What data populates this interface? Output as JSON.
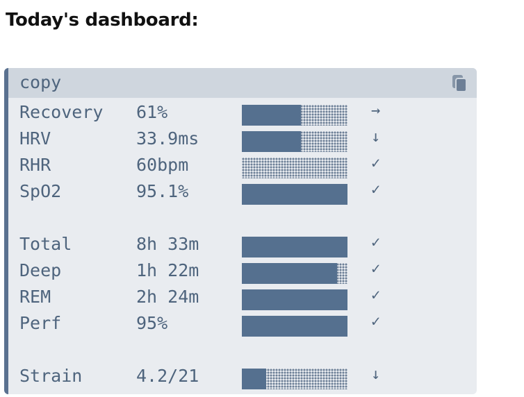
{
  "heading": "Today's dashboard:",
  "code_block": {
    "language": "copy",
    "copy_icon": "copy-icon",
    "rows": [
      {
        "label": "Recovery",
        "value": "61%",
        "fill": 0.56,
        "trend": "→"
      },
      {
        "label": "HRV",
        "value": "33.9ms",
        "fill": 0.56,
        "trend": "↓"
      },
      {
        "label": "RHR",
        "value": "60bpm",
        "fill": 0.0,
        "trend": "✓"
      },
      {
        "label": "SpO2",
        "value": "95.1%",
        "fill": 1.0,
        "trend": "✓"
      },
      {
        "label": "Total",
        "value": "8h 33m",
        "fill": 1.0,
        "trend": "✓"
      },
      {
        "label": "Deep",
        "value": "1h 22m",
        "fill": 0.9,
        "trend": "✓"
      },
      {
        "label": "REM",
        "value": "2h 24m",
        "fill": 1.0,
        "trend": "✓"
      },
      {
        "label": "Perf",
        "value": "95%",
        "fill": 1.0,
        "trend": "✓"
      },
      {
        "label": "Strain",
        "value": "4.2/21",
        "fill": 0.23,
        "trend": "↓"
      }
    ]
  }
}
